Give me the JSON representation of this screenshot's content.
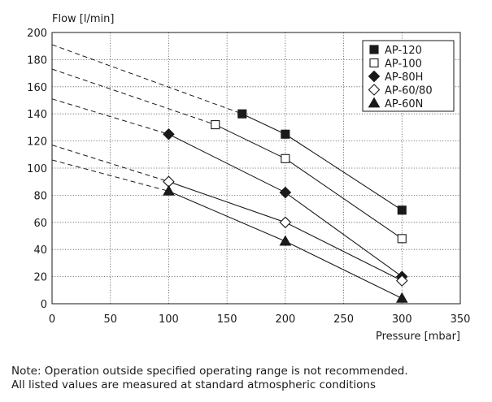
{
  "chart_data": {
    "type": "line",
    "title": "",
    "xlabel": "Pressure [mbar]",
    "ylabel": "Flow [l/min]",
    "xlim": [
      0,
      350
    ],
    "ylim": [
      0,
      200
    ],
    "xticks": [
      0,
      50,
      100,
      150,
      200,
      250,
      300,
      350
    ],
    "yticks": [
      0,
      20,
      40,
      60,
      80,
      100,
      120,
      140,
      160,
      180,
      200
    ],
    "grid": true,
    "legend_position": "top-right",
    "series": [
      {
        "name": "AP-120",
        "marker": "square-filled",
        "x": [
          163,
          200,
          300
        ],
        "y": [
          140,
          125,
          69
        ],
        "extrapolation": {
          "x": [
            0,
            163
          ],
          "y": [
            191,
            140
          ]
        }
      },
      {
        "name": "AP-100",
        "marker": "square-open",
        "x": [
          140,
          200,
          300
        ],
        "y": [
          132,
          107,
          48
        ],
        "extrapolation": {
          "x": [
            0,
            140
          ],
          "y": [
            173,
            132
          ]
        }
      },
      {
        "name": "AP-80H",
        "marker": "diamond-filled",
        "x": [
          100,
          200,
          300
        ],
        "y": [
          125,
          82,
          20
        ],
        "extrapolation": {
          "x": [
            0,
            100
          ],
          "y": [
            151,
            125
          ]
        }
      },
      {
        "name": "AP-60/80",
        "marker": "diamond-open",
        "x": [
          100,
          200,
          300
        ],
        "y": [
          90,
          60,
          17
        ],
        "extrapolation": {
          "x": [
            0,
            100
          ],
          "y": [
            117,
            90
          ]
        }
      },
      {
        "name": "AP-60N",
        "marker": "triangle-filled",
        "x": [
          100,
          200,
          300
        ],
        "y": [
          83,
          46,
          4
        ],
        "extrapolation": {
          "x": [
            0,
            100
          ],
          "y": [
            106,
            83
          ]
        }
      }
    ]
  },
  "notes": {
    "line1": "Note: Operation outside specified operating range is not recommended.",
    "line2": "All listed values are measured at standard atmospheric conditions"
  }
}
